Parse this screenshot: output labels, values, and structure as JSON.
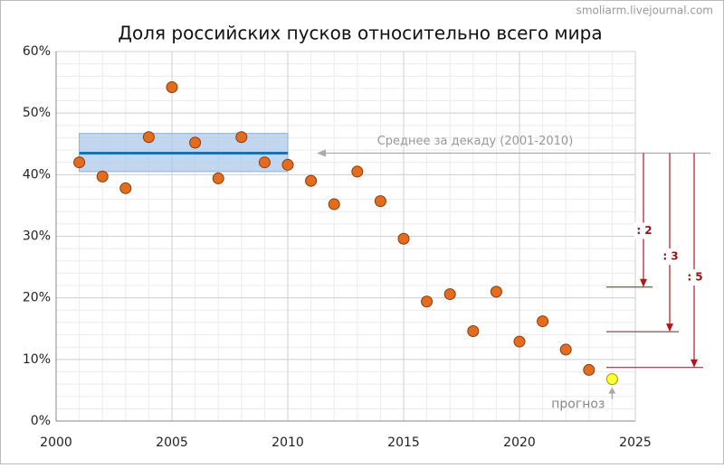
{
  "chart_data": {
    "type": "scatter",
    "title": "Доля российских пусков относительно всего мира",
    "watermark": "smoliarm.livejournal.com",
    "x": [
      2001,
      2002,
      2003,
      2004,
      2005,
      2006,
      2007,
      2008,
      2009,
      2010,
      2011,
      2012,
      2013,
      2014,
      2015,
      2016,
      2017,
      2018,
      2019,
      2020,
      2021,
      2022,
      2023
    ],
    "values": [
      42,
      39.7,
      37.8,
      46.1,
      54.2,
      45.2,
      39.4,
      46.1,
      42,
      41.6,
      39,
      35.2,
      40.5,
      35.7,
      29.6,
      19.4,
      20.6,
      14.6,
      21,
      12.9,
      16.2,
      11.6,
      8.3
    ],
    "color": "#e46c1e",
    "forecast": {
      "label": "прогноз",
      "x": 2024,
      "value": 6.8,
      "color": "#ffff33"
    },
    "mean": {
      "label": "Среднее за декаду (2001-2010)",
      "x": [
        2001,
        2010
      ],
      "value": 43.5,
      "band": [
        40.5,
        46.7
      ],
      "color": "#1f6fb5"
    },
    "divisions": [
      {
        "label": ": 2",
        "value": 21.75
      },
      {
        "label": ": 3",
        "value": 14.5
      },
      {
        "label": ": 5",
        "value": 8.7
      }
    ],
    "xlim": [
      2000,
      2025
    ],
    "xticks": [
      2000,
      2005,
      2010,
      2015,
      2020,
      2025
    ],
    "ylim": [
      0,
      60
    ],
    "yticks": [
      {
        "value": 0,
        "label": "0%"
      },
      {
        "value": 10,
        "label": "10%"
      },
      {
        "value": 20,
        "label": "20%"
      },
      {
        "value": 30,
        "label": "30%"
      },
      {
        "value": 40,
        "label": "40%"
      },
      {
        "value": 50,
        "label": "50%"
      },
      {
        "value": 60,
        "label": "60%"
      }
    ],
    "grid": true
  }
}
